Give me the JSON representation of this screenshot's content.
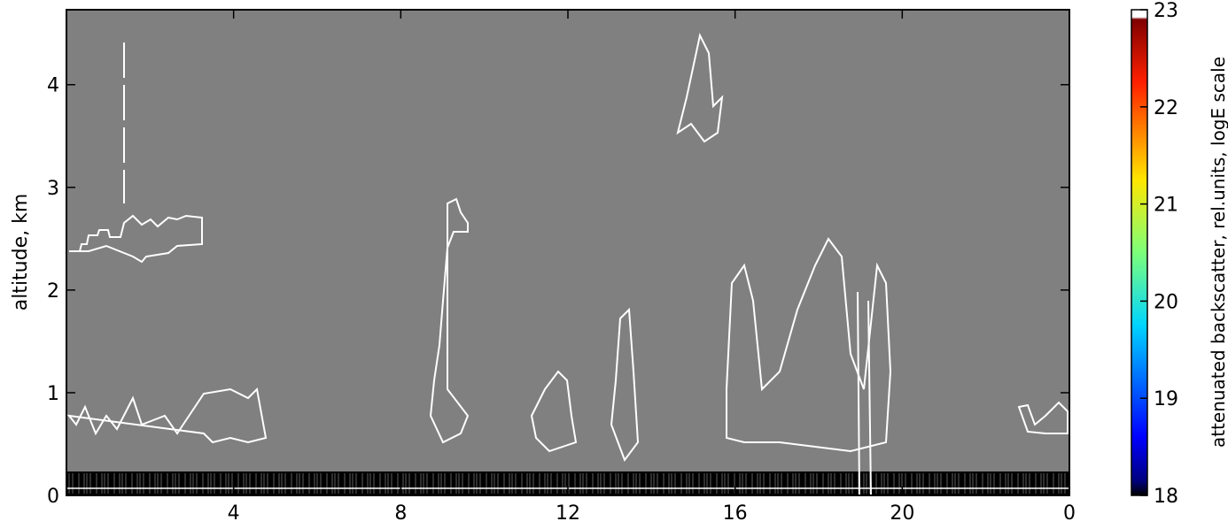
{
  "chart_data": {
    "type": "heatmap",
    "ylabel": "altitude, km",
    "xlim": [
      0,
      24
    ],
    "xticks": [
      4,
      8,
      12,
      16,
      20,
      {
        "value": 24,
        "label": "0"
      }
    ],
    "ylim": [
      0,
      4.73
    ],
    "yticks": [
      0,
      1,
      2,
      3,
      4
    ],
    "background": "#808080",
    "colorbar": {
      "label": "attenuated backscatter, rel.units, logE scale",
      "lim": [
        18,
        23
      ],
      "ticks": [
        18,
        19,
        20,
        21,
        22,
        23
      ]
    }
  }
}
